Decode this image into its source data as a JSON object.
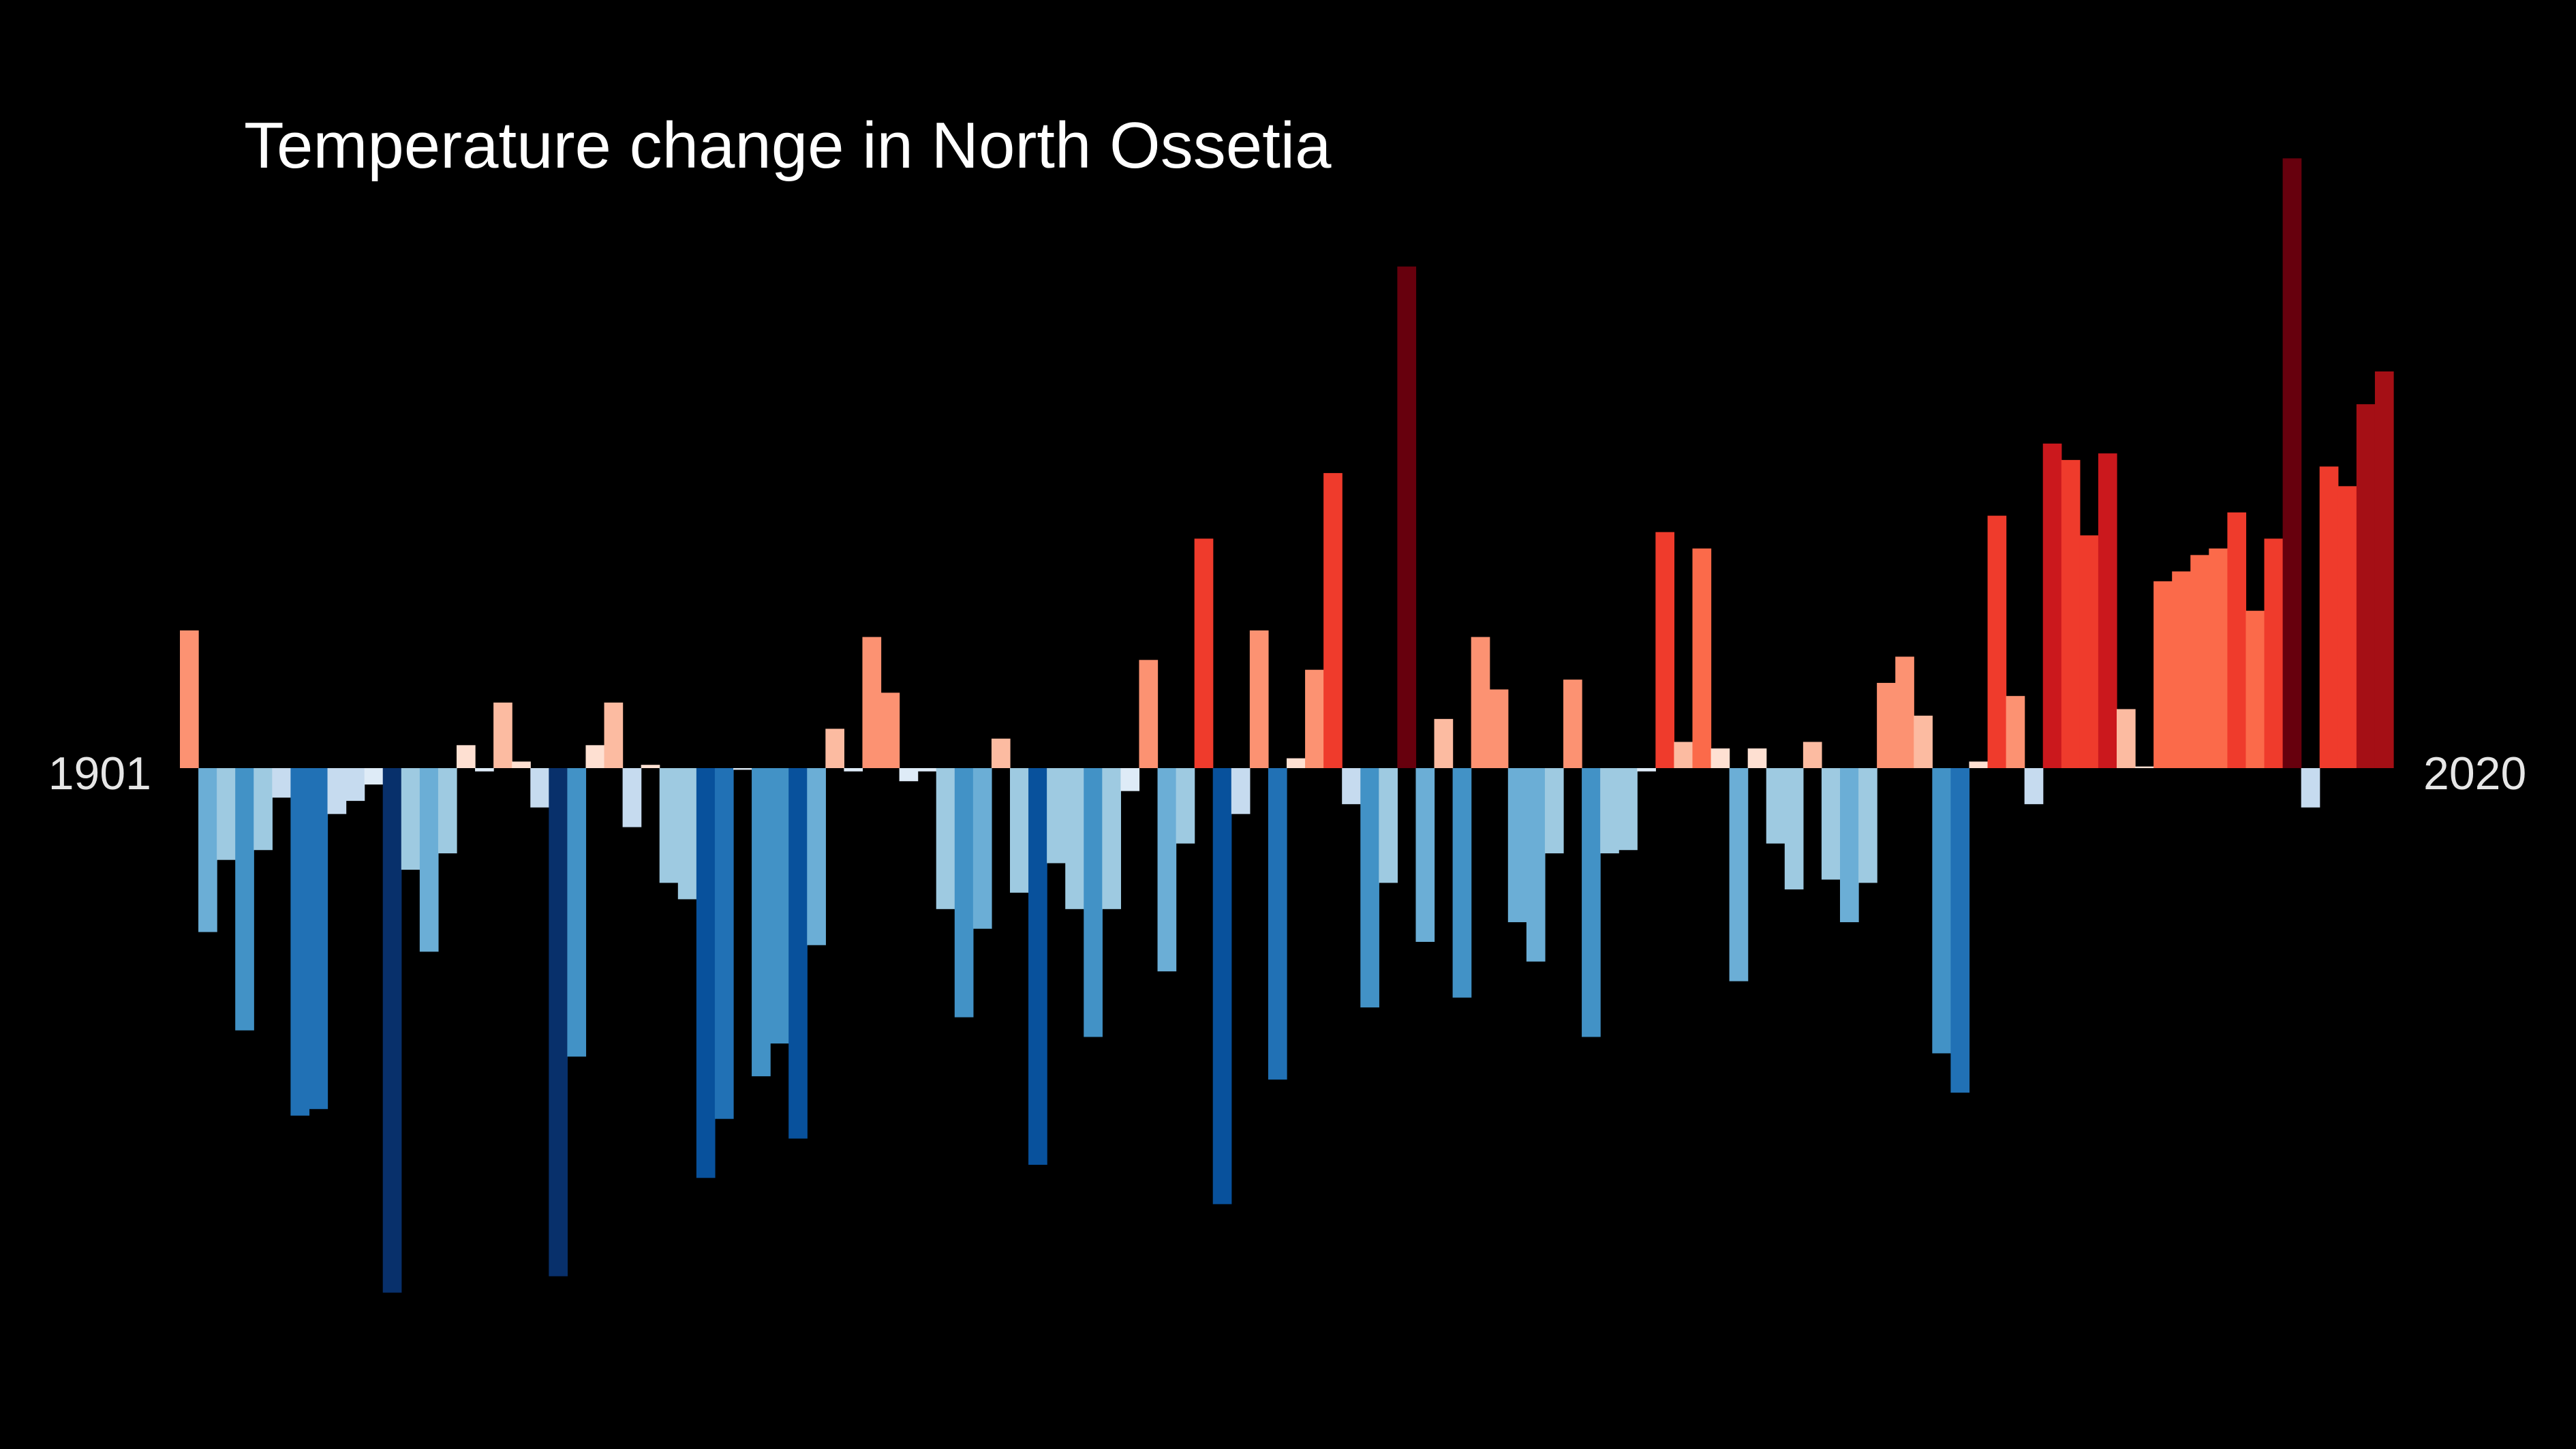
{
  "chart_data": {
    "type": "bar",
    "title": "Temperature change in North Ossetia",
    "start_label": "1901",
    "end_label": "2020",
    "x_start": 1901,
    "x_end": 2020,
    "baseline": 0,
    "ylim": [
      -1.6,
      1.86
    ],
    "grid": false,
    "legend": "none",
    "colors": {
      "background": "#000000",
      "text": "#ffffff",
      "year_labels": "#e6e6e6"
    },
    "values": [
      0.42,
      -0.5,
      -0.28,
      -0.8,
      -0.25,
      -0.09,
      -1.06,
      -1.04,
      -0.14,
      -0.1,
      -0.05,
      -1.6,
      -0.31,
      -0.56,
      -0.26,
      0.07,
      -0.01,
      0.2,
      0.02,
      -0.12,
      -1.55,
      -0.88,
      0.07,
      0.2,
      -0.18,
      0.01,
      -0.35,
      -0.4,
      -1.25,
      -1.07,
      -0.005,
      -0.94,
      -0.84,
      -1.13,
      -0.54,
      0.12,
      -0.01,
      0.4,
      0.23,
      -0.04,
      -0.01,
      -0.43,
      -0.76,
      -0.49,
      0.09,
      -0.38,
      -1.21,
      -0.29,
      -0.43,
      -0.82,
      -0.43,
      -0.07,
      0.33,
      -0.62,
      -0.23,
      0.7,
      -1.33,
      -0.14,
      0.42,
      -0.95,
      0.03,
      0.3,
      0.9,
      -0.11,
      -0.73,
      -0.35,
      1.53,
      -0.53,
      0.15,
      -0.7,
      0.4,
      0.24,
      -0.47,
      -0.59,
      -0.26,
      0.27,
      -0.82,
      -0.26,
      -0.25,
      -0.01,
      0.72,
      0.08,
      0.67,
      0.06,
      -0.65,
      0.06,
      -0.23,
      -0.37,
      0.08,
      -0.34,
      -0.47,
      -0.35,
      0.26,
      0.34,
      0.16,
      -0.87,
      -0.99,
      0.02,
      0.77,
      0.22,
      -0.11,
      0.99,
      0.94,
      0.71,
      0.96,
      0.18,
      0.005,
      0.57,
      0.6,
      0.65,
      0.67,
      0.78,
      0.48,
      0.7,
      1.86,
      -0.12,
      0.92,
      0.86,
      1.11,
      1.21
    ]
  }
}
